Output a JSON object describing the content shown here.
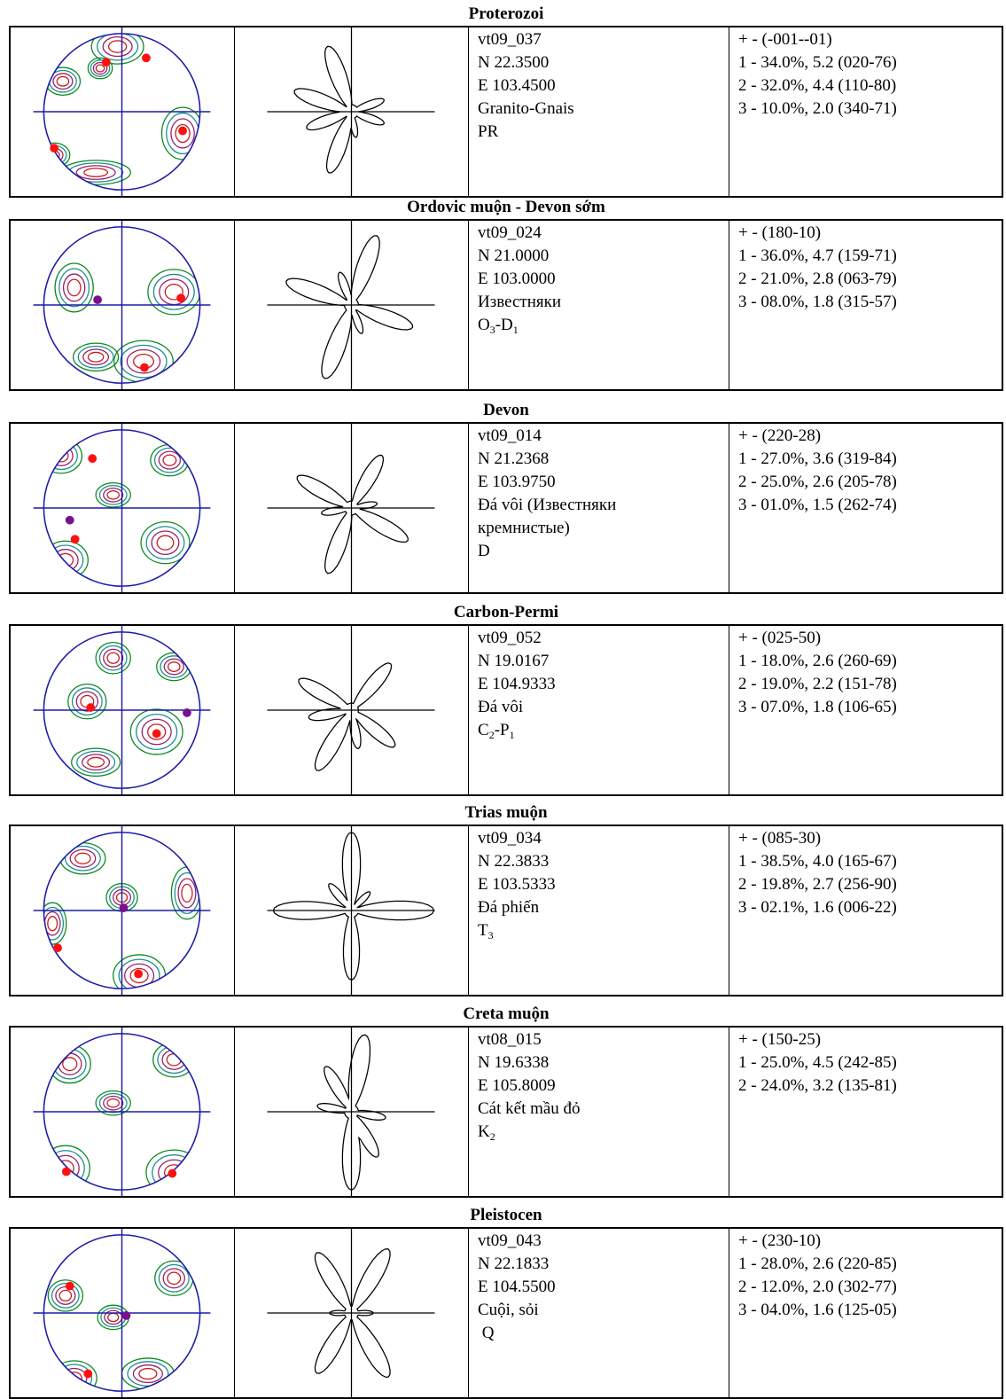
{
  "sections": [
    {
      "title": "Proterozoi",
      "info": [
        "vt09_037",
        "N 22.3500",
        "E 103.4500",
        "Granito-Gnais",
        "PR"
      ],
      "stats": [
        "+ - (-001--01)",
        "1 - 34.0%, 5.2 (020-76)",
        "2 - 32.0%, 4.4 (110-80)",
        "3 - 10.0%, 2.0 (340-71)"
      ]
    },
    {
      "title": "Ordovic muộn - Devon sớm",
      "info": [
        "vt09_024",
        "N 21.0000",
        "E 103.0000",
        "Известняки"
      ],
      "age": {
        "base": "O",
        "s1": "3",
        "mid": "-D",
        "s2": "1"
      },
      "stats": [
        "+ - (180-10)",
        "1 - 36.0%, 4.7 (159-71)",
        "2 - 21.0%, 2.8 (063-79)",
        "3 - 08.0%, 1.8 (315-57)"
      ]
    },
    {
      "title": "Devon",
      "info": [
        "vt09_014",
        "N 21.2368",
        "E 103.9750",
        "Đá vôi (Известняки",
        "кремнистые)",
        "D"
      ],
      "stats": [
        "+ - (220-28)",
        "1 - 27.0%, 3.6 (319-84)",
        "2 - 25.0%, 2.6 (205-78)",
        "3 - 01.0%, 1.5 (262-74)"
      ]
    },
    {
      "title": "Carbon-Permi",
      "info": [
        "vt09_052",
        "N 19.0167",
        "E 104.9333",
        "Đá vôi"
      ],
      "age": {
        "base": "C",
        "s1": "2",
        "mid": "-P",
        "s2": "1"
      },
      "stats": [
        "+ - (025-50)",
        "1 - 18.0%, 2.6 (260-69)",
        "2 - 19.0%, 2.2 (151-78)",
        "3 - 07.0%, 1.8 (106-65)"
      ]
    },
    {
      "title": "Trias muộn",
      "info": [
        "vt09_034",
        "N 22.3833",
        "E 103.5333",
        "Đá phiến"
      ],
      "age": {
        "base": "T",
        "s1": "3",
        "mid": "",
        "s2": ""
      },
      "stats": [
        "+ - (085-30)",
        "1 - 38.5%, 4.0 (165-67)",
        "2 - 19.8%, 2.7 (256-90)",
        "3 - 02.1%, 1.6 (006-22)"
      ]
    },
    {
      "title": "Creta muộn",
      "info": [
        "vt08_015",
        "N 19.6338",
        "E 105.8009",
        "Cát kết mầu đỏ"
      ],
      "age": {
        "base": "K",
        "s1": "2",
        "mid": "",
        "s2": ""
      },
      "stats": [
        "+ - (150-25)",
        "1 - 25.0%, 4.5 (242-85)",
        "2 - 24.0%, 3.2 (135-81)"
      ]
    },
    {
      "title": "Pleistocen",
      "info": [
        "vt09_043",
        "N 22.1833",
        "E 104.5500",
        "Cuội, sỏi",
        " Q"
      ],
      "stats": [
        "+ - (230-10)",
        "1 - 28.0%, 2.6 (220-85)",
        "2 - 12.0%, 2.0 (302-77)",
        "3 - 04.0%, 1.6 (125-05)"
      ]
    }
  ],
  "colors": {
    "circle": "#1c1ca8",
    "contour_1": "#0a8a1e",
    "contour_2": "#1a8f8f",
    "contour_3": "#9a1c6a",
    "contour_4": "#c81a1a",
    "max_point": "#ff1010",
    "second_point": "#7a1090"
  }
}
